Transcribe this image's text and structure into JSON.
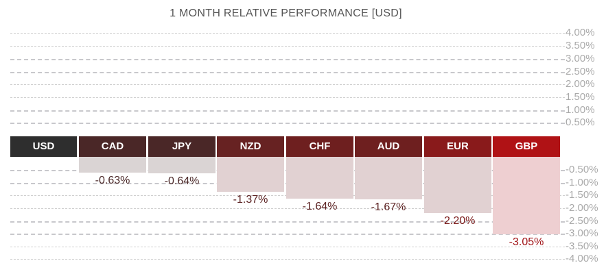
{
  "chart_data": {
    "type": "bar",
    "title": "1 MONTH RELATIVE PERFORMANCE  [USD]",
    "categories": [
      "USD",
      "CAD",
      "JPY",
      "NZD",
      "CHF",
      "AUD",
      "EUR",
      "GBP"
    ],
    "values": [
      null,
      -0.63,
      -0.64,
      -1.37,
      -1.64,
      -1.67,
      -2.2,
      -3.05
    ],
    "value_labels": [
      "",
      "-0.63%",
      "-0.64%",
      "-1.37%",
      "-1.64%",
      "-1.67%",
      "-2.20%",
      "-3.05%"
    ],
    "positive_ticks": [
      "4.00%",
      "3.50%",
      "3.00%",
      "2.50%",
      "2.00%",
      "1.50%",
      "1.00%",
      "0.50%"
    ],
    "positive_tick_values": [
      4.0,
      3.5,
      3.0,
      2.5,
      2.0,
      1.5,
      1.0,
      0.5
    ],
    "negative_ticks": [
      "-0.50%",
      "-1.00%",
      "-1.50%",
      "-2.00%",
      "-2.50%",
      "-3.00%",
      "-3.50%",
      "-4.00%"
    ],
    "negative_tick_values": [
      -0.5,
      -1.0,
      -1.5,
      -2.0,
      -2.5,
      -3.0,
      -3.5,
      -4.0
    ],
    "ylim": [
      -4.0,
      4.0
    ],
    "grid": true,
    "header_colors": [
      "#2e2e2e",
      "#4a2727",
      "#4a2727",
      "#672222",
      "#6e1f1f",
      "#6e1f1f",
      "#891a1b",
      "#b01215"
    ],
    "bar_colors": [
      "#ffffff",
      "#dad4d4",
      "#dad4d4",
      "#e1d1d2",
      "#e1d1d2",
      "#e1d1d2",
      "#e1d1d2",
      "#eecfd1"
    ],
    "label_colors": [
      "#333333",
      "#4a2727",
      "#4a2727",
      "#5a2020",
      "#5a2020",
      "#5a2020",
      "#7a1a1a",
      "#a01216"
    ]
  }
}
